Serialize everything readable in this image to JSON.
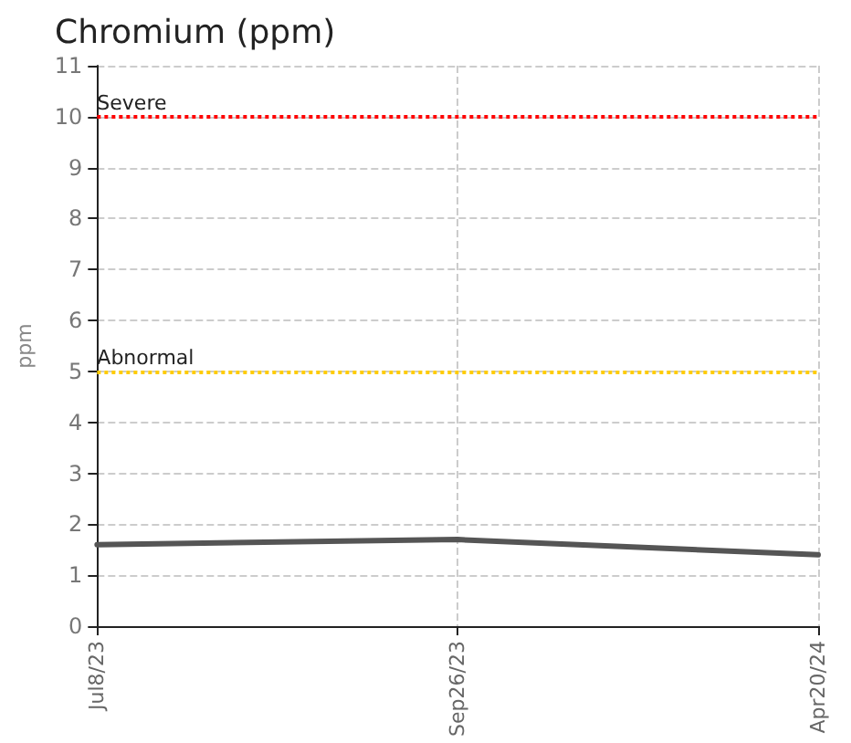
{
  "chart_data": {
    "type": "line",
    "title": "Chromium (ppm)",
    "ylabel": "ppm",
    "categories": [
      "Jul8/23",
      "Sep26/23",
      "Apr20/24"
    ],
    "series": [
      {
        "color": "#555555",
        "values": [
          1.6,
          1.7,
          1.4
        ]
      }
    ],
    "ylim": [
      0,
      11
    ],
    "yticks": [
      0,
      1,
      2,
      3,
      4,
      5,
      6,
      7,
      8,
      9,
      10,
      11
    ],
    "grid": true,
    "marker": "none",
    "line_style": "solid",
    "ref_lines": [
      {
        "axis": "y",
        "value": 10,
        "label": "Severe",
        "color": "#ff0000",
        "line_style": "dotted"
      },
      {
        "axis": "y",
        "value": 5,
        "label": "Abnormal",
        "color": "#ffcc00",
        "line_style": "dotted"
      }
    ]
  }
}
